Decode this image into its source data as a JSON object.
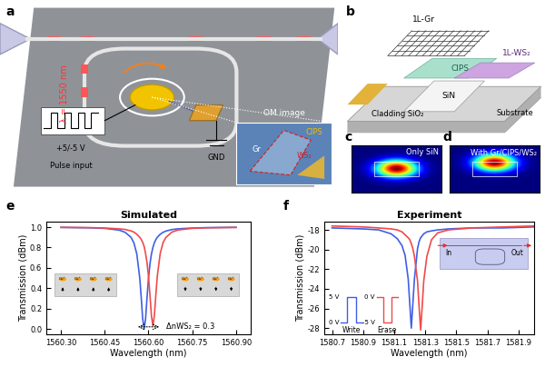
{
  "panels": {
    "a": {
      "label": "a",
      "wavelength": "λ = 1550 nm",
      "pulse_voltage": "+5/-5 V",
      "pulse_text": "Pulse input",
      "ground": "GND",
      "image_label": "OM image",
      "inset_texts": [
        "CIPS",
        "Gr",
        "WS₂"
      ]
    },
    "b": {
      "label": "b",
      "layers": [
        "1L-Gr",
        "CIPS",
        "1L-WS₂",
        "Cladding SiO₂",
        "SiN",
        "Substrate"
      ]
    },
    "c": {
      "label": "c",
      "text": "Only SiN"
    },
    "d": {
      "label": "d",
      "text": "With Gr/CIPS/WS₂"
    }
  },
  "chart_data": [
    {
      "type": "line",
      "panel": "e",
      "title": "Simulated",
      "xlabel": "Wavelength (nm)",
      "ylabel": "Transmission (dBm)",
      "x": [
        1560.3,
        1560.4,
        1560.45,
        1560.5,
        1560.52,
        1560.54,
        1560.55,
        1560.56,
        1560.57,
        1560.575,
        1560.58,
        1560.585,
        1560.59,
        1560.595,
        1560.6,
        1560.605,
        1560.61,
        1560.615,
        1560.62,
        1560.625,
        1560.63,
        1560.64,
        1560.65,
        1560.66,
        1560.68,
        1560.7,
        1560.75,
        1560.8,
        1560.9
      ],
      "series": [
        {
          "color": "#3f5fe6",
          "values": [
            0.997,
            0.993,
            0.988,
            0.97,
            0.949,
            0.9,
            0.845,
            0.735,
            0.5,
            0.31,
            0.1,
            0.0,
            0.1,
            0.31,
            0.5,
            0.64,
            0.735,
            0.8,
            0.845,
            0.877,
            0.9,
            0.93,
            0.949,
            0.962,
            0.976,
            0.983,
            0.991,
            0.995,
            0.998
          ]
        },
        {
          "color": "#f04a4a",
          "values": [
            0.998,
            0.995,
            0.991,
            0.983,
            0.977,
            0.963,
            0.951,
            0.93,
            0.9,
            0.88,
            0.85,
            0.81,
            0.74,
            0.65,
            0.515,
            0.33,
            0.13,
            0.03,
            0.13,
            0.33,
            0.515,
            0.74,
            0.85,
            0.9,
            0.951,
            0.971,
            0.988,
            0.993,
            0.997
          ]
        }
      ],
      "xlim": [
        1560.25,
        1560.95
      ],
      "xticks": [
        {
          "value": 1560.3,
          "label": "1560.30"
        },
        {
          "value": 1560.45,
          "label": "1560.45"
        },
        {
          "value": 1560.6,
          "label": "1560.60"
        },
        {
          "value": 1560.75,
          "label": "1560.75"
        },
        {
          "value": 1560.9,
          "label": "1560.90"
        }
      ],
      "ylim": [
        -0.05,
        1.05
      ],
      "yticks": [
        {
          "value": 0,
          "label": "0.0"
        },
        {
          "value": 0.2,
          "label": "0.2"
        },
        {
          "value": 0.4,
          "label": "0.4"
        },
        {
          "value": 0.6,
          "label": "0.6"
        },
        {
          "value": 0.8,
          "label": "0.8"
        },
        {
          "value": 1,
          "label": "1.0"
        }
      ],
      "annotations": [
        "ΔnWS₂ = 0.3"
      ],
      "inset_texts": [
        "Cu⁺"
      ],
      "grid": false
    },
    {
      "type": "line",
      "panel": "f",
      "title": "Experiment",
      "xlabel": "Wavelength (nm)",
      "ylabel": "Transmission (dBm)",
      "x": [
        1580.7,
        1580.9,
        1581.0,
        1581.08,
        1581.12,
        1581.15,
        1581.17,
        1581.19,
        1581.2,
        1581.21,
        1581.22,
        1581.23,
        1581.25,
        1581.26,
        1581.27,
        1581.28,
        1581.29,
        1581.31,
        1581.34,
        1581.38,
        1581.45,
        1581.6,
        1581.8,
        1582.0
      ],
      "series": [
        {
          "color": "#3f5fe6",
          "values": [
            -17.8,
            -17.9,
            -18.0,
            -18.4,
            -18.9,
            -19.6,
            -20.6,
            -23.0,
            -25.5,
            -28.0,
            -25.5,
            -23.0,
            -19.9,
            -19.2,
            -18.8,
            -18.6,
            -18.4,
            -18.2,
            -18.1,
            -18.0,
            -17.9,
            -17.8,
            -17.8,
            -17.7
          ]
        },
        {
          "color": "#f04a4a",
          "values": [
            -17.6,
            -17.7,
            -17.8,
            -17.9,
            -18.0,
            -18.2,
            -18.5,
            -18.8,
            -19.0,
            -19.4,
            -19.9,
            -20.7,
            -23.2,
            -25.8,
            -28.2,
            -25.8,
            -23.2,
            -20.7,
            -19.0,
            -18.3,
            -18.0,
            -17.8,
            -17.7,
            -17.6
          ]
        }
      ],
      "xlim": [
        1580.65,
        1582.0
      ],
      "xticks": [
        1580.7,
        1580.9,
        1581.1,
        1581.3,
        1581.5,
        1581.7,
        1581.9
      ],
      "ylim": [
        -28.6,
        -17.2
      ],
      "yticks": [
        -28,
        -26,
        -24,
        -22,
        -20,
        -18
      ],
      "pulses": [
        {
          "name": "Write",
          "levels": [
            "5 V",
            "0 V"
          ],
          "color": "#3f5fe6"
        },
        {
          "name": "Erase",
          "levels": [
            "0 V",
            "-5 V"
          ],
          "color": "#f04a4a"
        }
      ],
      "inset_texts": [
        "In",
        "Out"
      ],
      "grid": false
    }
  ]
}
